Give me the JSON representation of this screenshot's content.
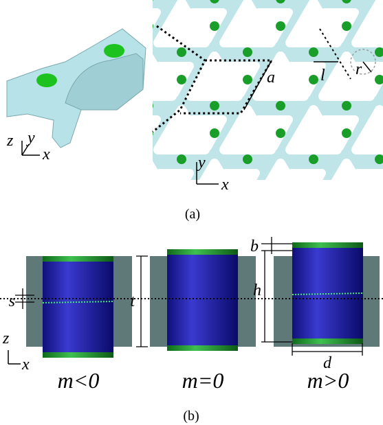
{
  "panel_a": {
    "caption": "(a)",
    "unit_cell_axes": {
      "z": "z",
      "y": "y",
      "x": "x"
    },
    "lattice_labels": {
      "a": "a",
      "l": "l",
      "r": "r"
    },
    "lattice_axes": {
      "y": "y",
      "x": "x"
    }
  },
  "panel_b": {
    "caption": "(b)",
    "labels": {
      "s": "s",
      "t": "t",
      "b": "b",
      "h": "h",
      "d": "d"
    },
    "axes": {
      "z": "z",
      "x": "x"
    },
    "cases": [
      "m<0",
      "m=0",
      "m>0"
    ]
  }
}
